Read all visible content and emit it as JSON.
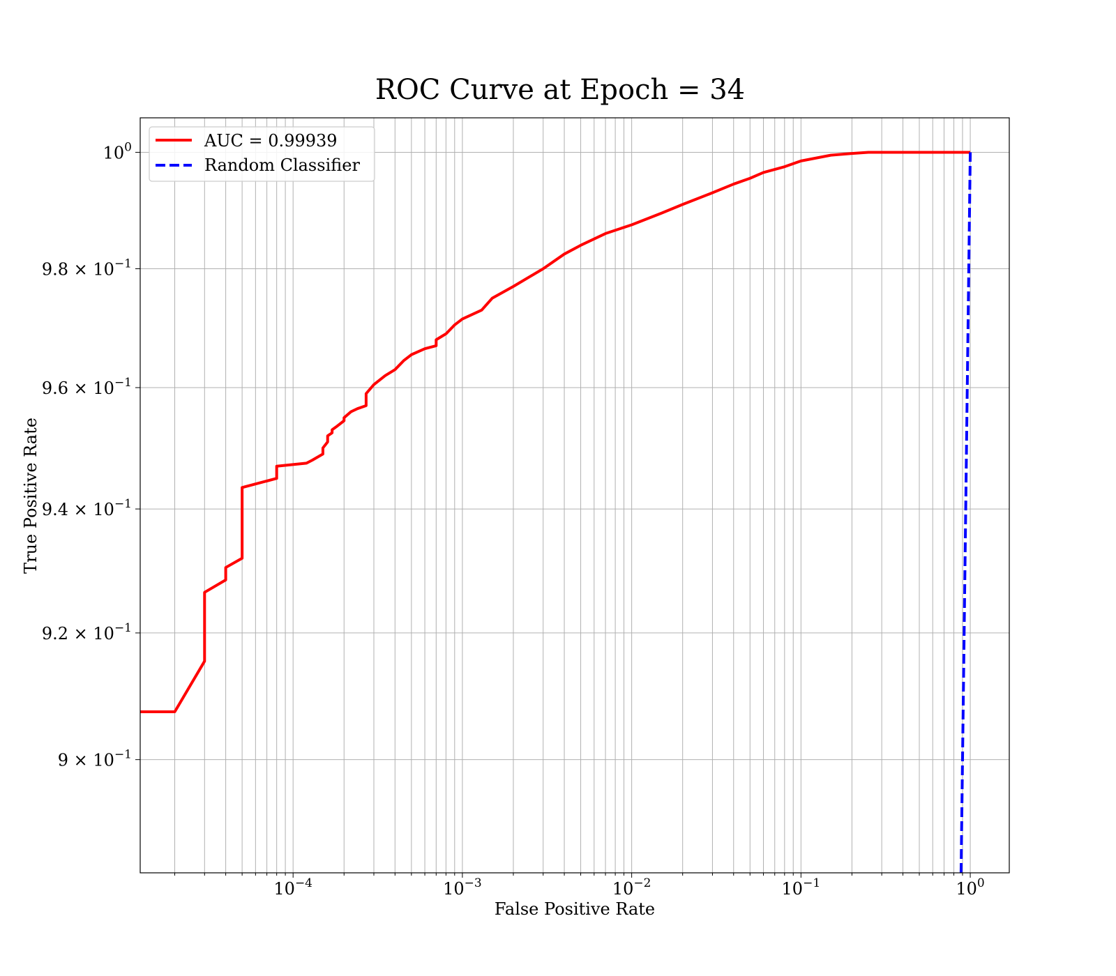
{
  "chart_data": {
    "type": "line",
    "title": "ROC Curve at Epoch = 34",
    "xlabel": "False Positive Rate",
    "ylabel": "True Positive Rate",
    "xscale": "log",
    "yscale": "log",
    "xlim": [
      1.25e-05,
      1.7
    ],
    "ylim": [
      0.8825,
      1.006
    ],
    "grid": "major-and-minor",
    "legend_position": "top-left",
    "x_ticks": [
      {
        "value": 0.0001,
        "base": "10",
        "exp": "−4"
      },
      {
        "value": 0.001,
        "base": "10",
        "exp": "−3"
      },
      {
        "value": 0.01,
        "base": "10",
        "exp": "−2"
      },
      {
        "value": 0.1,
        "base": "10",
        "exp": "−1"
      },
      {
        "value": 1,
        "base": "10",
        "exp": "0"
      }
    ],
    "y_ticks": [
      {
        "value": 1.0,
        "base": "10",
        "exp": "0"
      },
      {
        "value": 0.98,
        "base": "9.8 × 10",
        "exp": "−1"
      },
      {
        "value": 0.96,
        "base": "9.6 × 10",
        "exp": "−1"
      },
      {
        "value": 0.94,
        "base": "9.4 × 10",
        "exp": "−1"
      },
      {
        "value": 0.92,
        "base": "9.2 × 10",
        "exp": "−1"
      },
      {
        "value": 0.9,
        "base": "9 × 10",
        "exp": "−1"
      }
    ],
    "series": [
      {
        "name": "AUC = 0.99939",
        "color": "#ff0000",
        "style": "solid",
        "x": [
          1.25e-05,
          2e-05,
          3e-05,
          3e-05,
          4e-05,
          4e-05,
          5e-05,
          5e-05,
          8e-05,
          8e-05,
          0.00012,
          0.00013,
          0.00015,
          0.00015,
          0.00016,
          0.00016,
          0.00017,
          0.00017,
          0.00018,
          0.0002,
          0.0002,
          0.00022,
          0.00024,
          0.00027,
          0.00027,
          0.0003,
          0.00035,
          0.0004,
          0.00045,
          0.0005,
          0.0006,
          0.0007,
          0.0007,
          0.0008,
          0.0009,
          0.001,
          0.0013,
          0.0015,
          0.002,
          0.003,
          0.004,
          0.005,
          0.007,
          0.01,
          0.015,
          0.02,
          0.03,
          0.04,
          0.05,
          0.06,
          0.08,
          0.1,
          0.15,
          0.2,
          0.25,
          1.0
        ],
        "y": [
          0.9075,
          0.9075,
          0.9155,
          0.9265,
          0.9285,
          0.9305,
          0.932,
          0.9435,
          0.945,
          0.947,
          0.9475,
          0.948,
          0.949,
          0.95,
          0.951,
          0.952,
          0.9525,
          0.953,
          0.9535,
          0.9545,
          0.955,
          0.956,
          0.9565,
          0.957,
          0.959,
          0.9605,
          0.962,
          0.963,
          0.9645,
          0.9655,
          0.9665,
          0.967,
          0.968,
          0.969,
          0.9705,
          0.9715,
          0.973,
          0.975,
          0.977,
          0.98,
          0.9825,
          0.984,
          0.986,
          0.9875,
          0.9895,
          0.991,
          0.993,
          0.9945,
          0.9955,
          0.9965,
          0.9975,
          0.9985,
          0.9995,
          0.9998,
          1.0,
          1.0
        ]
      },
      {
        "name": "Random Classifier",
        "color": "#0000ff",
        "style": "dashed",
        "x": [
          0.8825,
          1.0
        ],
        "y": [
          0.8825,
          1.0
        ]
      }
    ]
  }
}
